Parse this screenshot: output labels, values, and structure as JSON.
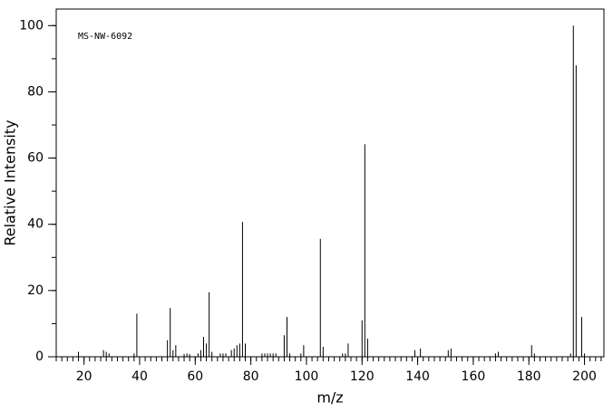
{
  "chart_data": {
    "type": "stem",
    "annotation": "MS-NW-6092",
    "xlabel": "m/z",
    "ylabel": "Relative Intensity",
    "x": [
      18,
      27,
      28,
      29,
      38,
      39,
      50,
      51,
      52,
      53,
      56,
      57,
      58,
      61,
      62,
      63,
      64,
      65,
      66,
      69,
      70,
      71,
      73,
      74,
      75,
      76,
      77,
      78,
      84,
      85,
      86,
      87,
      88,
      89,
      92,
      93,
      94,
      98,
      99,
      105,
      106,
      113,
      114,
      115,
      120,
      121,
      122,
      139,
      141,
      151,
      152,
      168,
      169,
      181,
      182,
      195,
      196,
      197,
      199,
      200
    ],
    "values": [
      1.5,
      2,
      1.5,
      1,
      1,
      13,
      5,
      14.7,
      2,
      3.5,
      0.8,
      1,
      0.8,
      1,
      2,
      6,
      4,
      19.5,
      1.5,
      1,
      1,
      1,
      2,
      2.5,
      3.5,
      4,
      40.7,
      4,
      1,
      1,
      1,
      1,
      1,
      1,
      6.5,
      12,
      1,
      1,
      3.5,
      35.6,
      3,
      1,
      1,
      4,
      11,
      64.2,
      5.5,
      2,
      2.5,
      2,
      2.5,
      1,
      1.5,
      3.5,
      1,
      1,
      100,
      88,
      12,
      1
    ],
    "color": "#000000",
    "xlim": [
      10,
      207
    ],
    "ylim": [
      0,
      105
    ],
    "xticks": [
      20,
      40,
      60,
      80,
      100,
      120,
      140,
      160,
      180,
      200
    ],
    "yticks": [
      0,
      20,
      40,
      60,
      80,
      100
    ],
    "x_minor_step": 2,
    "y_minor_step": 10,
    "grid": false
  }
}
